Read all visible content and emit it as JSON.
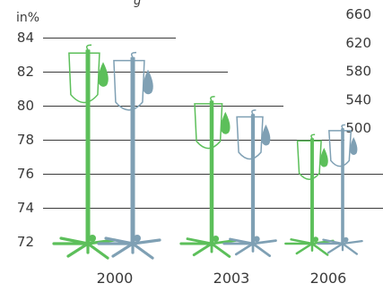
{
  "chart_data": {
    "type": "bar",
    "title": "",
    "caption_fragment": "g",
    "left_axis": {
      "unit": "in%",
      "ticks": [
        "84",
        "82",
        "80",
        "78",
        "76",
        "74",
        "72"
      ],
      "ylim": [
        72,
        84
      ]
    },
    "right_axis": {
      "ticks": [
        "660",
        "620",
        "580",
        "540",
        "500"
      ],
      "ylim": [
        460,
        660
      ]
    },
    "categories": [
      "2000",
      "2003",
      "2006"
    ],
    "series": [
      {
        "values": [
          83.3,
          80.3,
          78.1
        ],
        "color": "#5cbf5a"
      },
      {
        "values": [
          600,
          520,
          500
        ],
        "color": "#7fa0b4"
      }
    ],
    "grid": true,
    "legend": "none"
  }
}
